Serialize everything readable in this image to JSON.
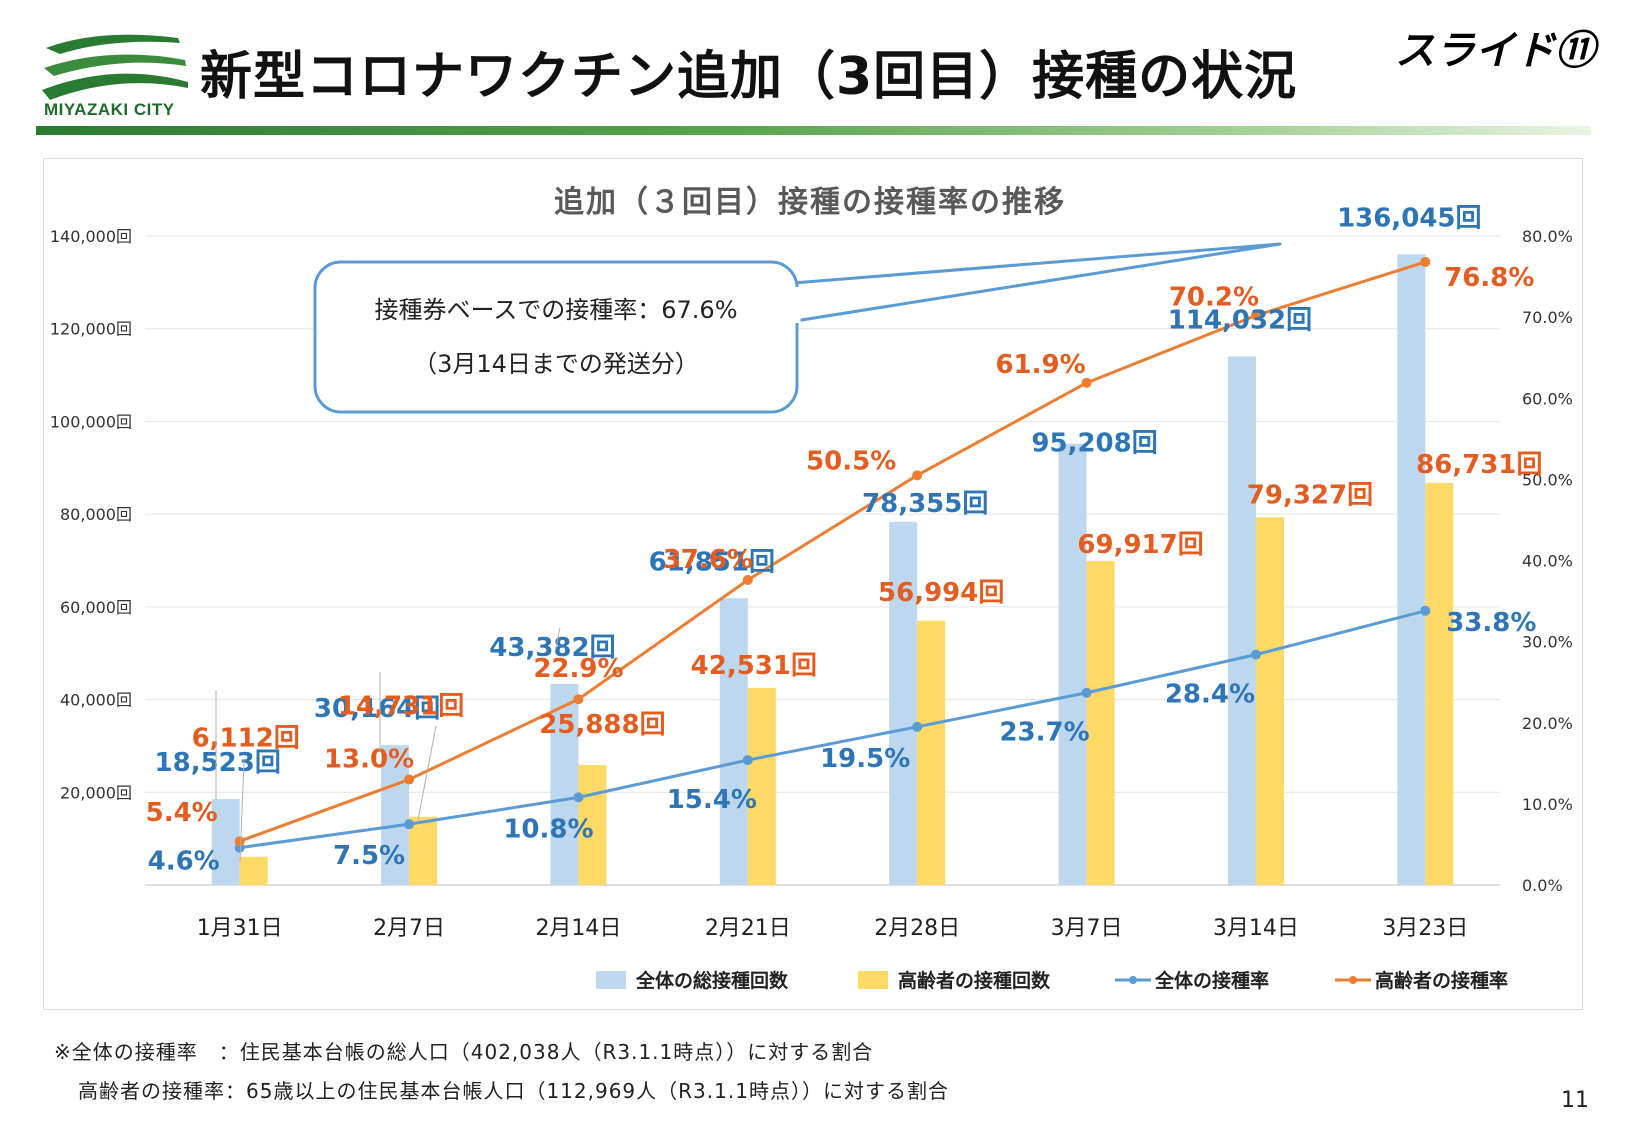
{
  "header": {
    "logo_text": "MIYAZAKI CITY",
    "title": "新型コロナワクチン追加（3回目）接種の状況",
    "slide_tag": "スライド⑪"
  },
  "callout": {
    "line1": "接種券ベースでの接種率：67.6%",
    "line2": "（3月14日までの発送分）"
  },
  "chart_data": {
    "type": "bar+line",
    "title": "追加（３回目）接種の接種率の推移",
    "categories": [
      "1月31日",
      "2月7日",
      "2月14日",
      "2月21日",
      "2月28日",
      "3月7日",
      "3月14日",
      "3月23日"
    ],
    "y_left": {
      "min": 0,
      "max": 140000,
      "ticks": [
        "20,000回",
        "40,000回",
        "60,000回",
        "80,000回",
        "100,000回",
        "120,000回",
        "140,000回"
      ],
      "tick_values": [
        20000,
        40000,
        60000,
        80000,
        100000,
        120000,
        140000
      ]
    },
    "y_right": {
      "min": 0,
      "max": 80,
      "ticks": [
        "0.0%",
        "10.0%",
        "20.0%",
        "30.0%",
        "40.0%",
        "50.0%",
        "60.0%",
        "70.0%",
        "80.0%"
      ],
      "tick_values": [
        0,
        10,
        20,
        30,
        40,
        50,
        60,
        70,
        80
      ]
    },
    "bars": [
      {
        "name": "全体の総接種回数",
        "color": "#bdd7ee",
        "label_color": "#2e75b6",
        "values": [
          18523,
          30164,
          43382,
          61851,
          78355,
          95208,
          114032,
          136045
        ],
        "labels": [
          "18,523回",
          "30,164回",
          "43,382回",
          "61,851回",
          "78,355回",
          "95,208回",
          "114,032回",
          "136,045回"
        ]
      },
      {
        "name": "高齢者の接種回数",
        "color": "#ffd966",
        "label_color": "#e45c1f",
        "values": [
          6112,
          14731,
          25888,
          42531,
          56994,
          69917,
          79327,
          86731
        ],
        "labels": [
          "6,112回",
          "14,731回",
          "25,888回",
          "42,531回",
          "56,994回",
          "69,917回",
          "79,327回",
          "86,731回"
        ]
      }
    ],
    "lines": [
      {
        "name": "全体の接種率",
        "color": "#5b9bd5",
        "label_color": "#2e75b6",
        "values": [
          4.6,
          7.5,
          10.8,
          15.4,
          19.5,
          23.7,
          28.4,
          33.8
        ],
        "labels": [
          "4.6%",
          "7.5%",
          "10.8%",
          "15.4%",
          "19.5%",
          "23.7%",
          "28.4%",
          "33.8%"
        ]
      },
      {
        "name": "高齢者の接種率",
        "color": "#ed7d31",
        "label_color": "#e45c1f",
        "values": [
          5.4,
          13.0,
          22.9,
          37.6,
          50.5,
          61.9,
          70.2,
          76.8
        ],
        "labels": [
          "5.4%",
          "13.0%",
          "22.9%",
          "37.6%",
          "50.5%",
          "61.9%",
          "70.2%",
          "76.8%"
        ]
      }
    ],
    "legend": [
      "全体の総接種回数",
      "高齢者の接種回数",
      "全体の接種率",
      "高齢者の接種率"
    ],
    "legend_position": "bottom-right"
  },
  "notes": {
    "line1": "※全体の接種率　：住民基本台帳の総人口（402,038人（R3.1.1時点））に対する割合",
    "line2": "高齢者の接種率：65歳以上の住民基本台帳人口（112,969人（R3.1.1時点））に対する割合"
  },
  "page_number": "11"
}
